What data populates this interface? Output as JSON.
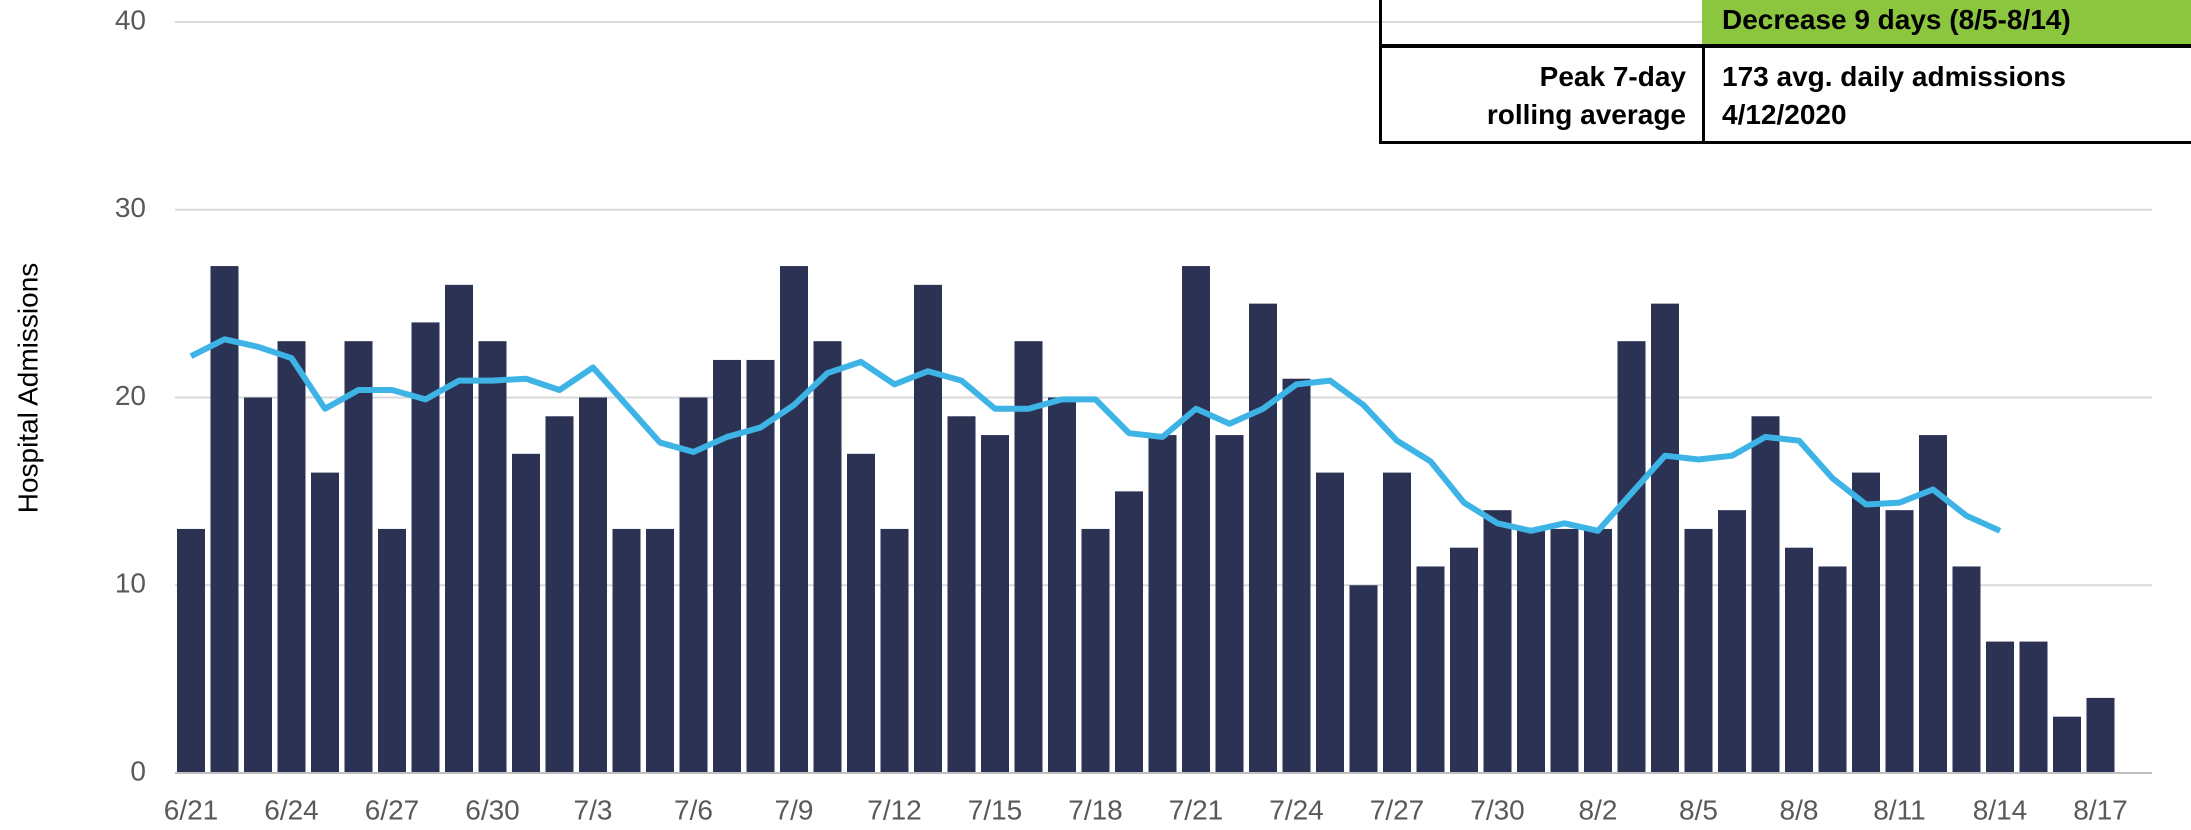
{
  "chart_data": {
    "type": "bar",
    "y_label": "Hospital Admissions",
    "categories": [
      "6/21",
      null,
      null,
      "6/24",
      null,
      null,
      "6/27",
      null,
      null,
      "6/30",
      null,
      null,
      "7/3",
      null,
      null,
      "7/6",
      null,
      null,
      "7/9",
      null,
      null,
      "7/12",
      null,
      null,
      "7/15",
      null,
      null,
      "7/18",
      null,
      null,
      "7/21",
      null,
      null,
      "7/24",
      null,
      null,
      "7/27",
      null,
      null,
      "7/30",
      null,
      null,
      "8/2",
      null,
      null,
      "8/5",
      null,
      null,
      "8/8",
      null,
      null,
      "8/11",
      null,
      null,
      "8/14",
      null,
      null,
      "8/17"
    ],
    "series": [
      {
        "type": "bar",
        "color": "#2c3254",
        "values": [
          13,
          27,
          20,
          23,
          16,
          23,
          13,
          24,
          26,
          23,
          17,
          19,
          20,
          13,
          13,
          20,
          22,
          22,
          27,
          23,
          17,
          13,
          26,
          19,
          18,
          23,
          20,
          13,
          15,
          18,
          27,
          18,
          25,
          21,
          16,
          10,
          16,
          11,
          12,
          14,
          13,
          13,
          13,
          23,
          25,
          13,
          14,
          19,
          12,
          11,
          16,
          14,
          18,
          11,
          7,
          7,
          3,
          4
        ]
      },
      {
        "type": "line",
        "color": "#3db4e5",
        "values": [
          22.2,
          23.1,
          22.7,
          22.1,
          19.4,
          20.4,
          20.4,
          19.9,
          20.9,
          20.9,
          21.0,
          20.4,
          21.6,
          19.6,
          17.6,
          17.1,
          17.9,
          18.4,
          19.6,
          21.3,
          21.9,
          20.7,
          21.4,
          20.9,
          19.4,
          19.4,
          19.9,
          19.9,
          18.1,
          17.9,
          19.4,
          18.6,
          19.4,
          20.7,
          20.9,
          19.6,
          17.7,
          16.6,
          14.4,
          13.3,
          12.9,
          13.3,
          12.9,
          14.9,
          16.9,
          16.7,
          16.9,
          17.9,
          17.7,
          15.7,
          14.3,
          14.4,
          15.1,
          13.7,
          12.9,
          null,
          null,
          null
        ]
      }
    ],
    "ylim": [
      0,
      40
    ],
    "yticks": [
      0,
      10,
      20,
      30,
      40
    ],
    "grid": true
  },
  "table": {
    "trend": "Decrease 9 days (8/5-8/14)",
    "peak": {
      "label": "Peak 7-day rolling average",
      "value": "173 avg. daily admissions",
      "date": "4/12/2020"
    }
  }
}
